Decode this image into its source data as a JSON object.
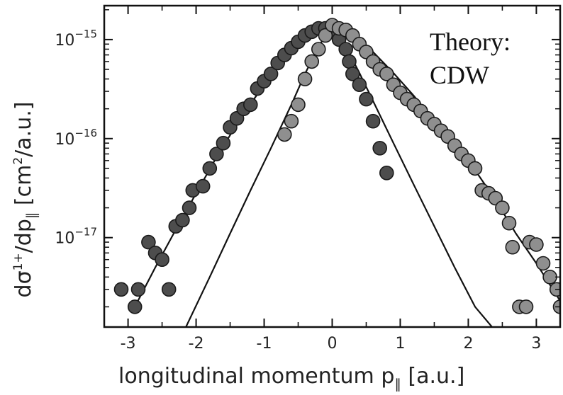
{
  "chart_data": {
    "type": "scatter",
    "title": "",
    "xlabel": "longitudinal momentum p∥ [a.u.]",
    "ylabel": "dσ1+/dp∥ [cm2/a.u.]",
    "ylabel_parts": {
      "a": "dσ",
      "sup1": "1+",
      "b": "/dp",
      "sub": "∥",
      "c": " [cm",
      "sup2": "2",
      "d": "/a.u.]"
    },
    "xlabel_parts": {
      "a": "longitudinal momentum p",
      "sub": "∥",
      "b": " [a.u.]"
    },
    "annotation": [
      "Theory:",
      "CDW"
    ],
    "xlim": [
      -3.35,
      3.35
    ],
    "ylim": [
      1.25e-18,
      2.2e-15
    ],
    "yscale": "log",
    "grid": false,
    "x_ticks": [
      {
        "value": -3,
        "label": "-3"
      },
      {
        "value": -2,
        "label": "-2"
      },
      {
        "value": -1,
        "label": "-1"
      },
      {
        "value": 0,
        "label": "0"
      },
      {
        "value": 1,
        "label": "1"
      },
      {
        "value": 2,
        "label": "2"
      },
      {
        "value": 3,
        "label": "3"
      }
    ],
    "y_ticks": [
      {
        "value": 1e-15,
        "label_base": "10",
        "label_exp": "−15"
      },
      {
        "value": 1e-16,
        "label_base": "10",
        "label_exp": "−16"
      },
      {
        "value": 1e-17,
        "label_base": "10",
        "label_exp": "−17"
      }
    ],
    "series": [
      {
        "type": "scatter",
        "color": "#4d4d4d",
        "points": [
          [
            -3.1,
            3e-18
          ],
          [
            -2.9,
            2e-18
          ],
          [
            -2.85,
            3e-18
          ],
          [
            -2.7,
            9e-18
          ],
          [
            -2.6,
            7e-18
          ],
          [
            -2.5,
            6e-18
          ],
          [
            -2.4,
            3e-18
          ],
          [
            -2.3,
            1.3e-17
          ],
          [
            -2.2,
            1.5e-17
          ],
          [
            -2.1,
            2e-17
          ],
          [
            -2.05,
            3e-17
          ],
          [
            -1.9,
            3.3e-17
          ],
          [
            -1.8,
            5e-17
          ],
          [
            -1.7,
            7e-17
          ],
          [
            -1.6,
            9e-17
          ],
          [
            -1.5,
            1.3e-16
          ],
          [
            -1.4,
            1.6e-16
          ],
          [
            -1.3,
            2e-16
          ],
          [
            -1.2,
            2.2e-16
          ],
          [
            -1.1,
            3.2e-16
          ],
          [
            -1.0,
            3.8e-16
          ],
          [
            -0.9,
            4.5e-16
          ],
          [
            -0.8,
            5.8e-16
          ],
          [
            -0.7,
            7e-16
          ],
          [
            -0.6,
            8.2e-16
          ],
          [
            -0.5,
            9.5e-16
          ],
          [
            -0.4,
            1.1e-15
          ],
          [
            -0.3,
            1.2e-15
          ],
          [
            -0.2,
            1.3e-15
          ],
          [
            -0.1,
            1.3e-15
          ],
          [
            0.0,
            1.2e-15
          ],
          [
            0.1,
            1e-15
          ],
          [
            0.2,
            8e-16
          ],
          [
            0.25,
            6e-16
          ],
          [
            0.3,
            4.5e-16
          ],
          [
            0.4,
            3.5e-16
          ],
          [
            0.5,
            2.5e-16
          ],
          [
            0.6,
            1.5e-16
          ],
          [
            0.7,
            8e-17
          ],
          [
            0.8,
            4.5e-17
          ]
        ]
      },
      {
        "type": "scatter",
        "color": "#8f8f8f",
        "points": [
          [
            -0.7,
            1.1e-16
          ],
          [
            -0.6,
            1.5e-16
          ],
          [
            -0.5,
            2.2e-16
          ],
          [
            -0.4,
            4e-16
          ],
          [
            -0.3,
            6e-16
          ],
          [
            -0.2,
            8e-16
          ],
          [
            -0.1,
            1.1e-15
          ],
          [
            0.0,
            1.4e-15
          ],
          [
            0.1,
            1.3e-15
          ],
          [
            0.2,
            1.25e-15
          ],
          [
            0.3,
            1.1e-15
          ],
          [
            0.4,
            9e-16
          ],
          [
            0.5,
            7.5e-16
          ],
          [
            0.6,
            6e-16
          ],
          [
            0.7,
            5e-16
          ],
          [
            0.8,
            4.5e-16
          ],
          [
            0.9,
            3.5e-16
          ],
          [
            1.0,
            2.9e-16
          ],
          [
            1.1,
            2.5e-16
          ],
          [
            1.2,
            2.2e-16
          ],
          [
            1.3,
            1.9e-16
          ],
          [
            1.4,
            1.6e-16
          ],
          [
            1.5,
            1.4e-16
          ],
          [
            1.6,
            1.2e-16
          ],
          [
            1.7,
            1.05e-16
          ],
          [
            1.8,
            8.5e-17
          ],
          [
            1.9,
            7e-17
          ],
          [
            2.0,
            6e-17
          ],
          [
            2.1,
            5e-17
          ],
          [
            2.2,
            3e-17
          ],
          [
            2.3,
            2.8e-17
          ],
          [
            2.4,
            2.5e-17
          ],
          [
            2.5,
            2e-17
          ],
          [
            2.6,
            1.4e-17
          ],
          [
            2.65,
            8e-18
          ],
          [
            2.75,
            2e-18
          ],
          [
            2.85,
            2e-18
          ],
          [
            2.9,
            9e-18
          ],
          [
            3.0,
            8.5e-18
          ],
          [
            3.1,
            5.5e-18
          ],
          [
            3.2,
            4e-18
          ],
          [
            3.3,
            3e-18
          ],
          [
            3.35,
            2e-18
          ]
        ]
      }
    ],
    "curves": [
      {
        "color": "#111111",
        "points": [
          [
            -2.9,
            2e-18
          ],
          [
            -2.6,
            5e-18
          ],
          [
            -2.3,
            1.2e-17
          ],
          [
            -2.0,
            2.8e-17
          ],
          [
            -1.7,
            6.5e-17
          ],
          [
            -1.4,
            1.4e-16
          ],
          [
            -1.1,
            2.8e-16
          ],
          [
            -0.8,
            5.3e-16
          ],
          [
            -0.5,
            8.8e-16
          ],
          [
            -0.3,
            1.15e-15
          ],
          [
            -0.15,
            1.3e-15
          ],
          [
            0.0,
            1.36e-15
          ],
          [
            0.15,
            1.3e-15
          ],
          [
            0.35,
            1.1e-15
          ],
          [
            0.6,
            7.5e-16
          ],
          [
            0.9,
            4.6e-16
          ],
          [
            1.2,
            2.7e-16
          ],
          [
            1.5,
            1.5e-16
          ],
          [
            1.8,
            8.5e-17
          ],
          [
            2.1,
            4.8e-17
          ],
          [
            2.4,
            2.4e-17
          ],
          [
            2.7,
            1.1e-17
          ],
          [
            3.0,
            5.5e-18
          ],
          [
            3.3,
            2.6e-18
          ],
          [
            3.35,
            2.3e-18
          ]
        ]
      },
      {
        "color": "#111111",
        "points": [
          [
            -2.15,
            1.25e-18
          ],
          [
            -1.8,
            4e-18
          ],
          [
            -1.5,
            1.1e-17
          ],
          [
            -1.2,
            3e-17
          ],
          [
            -0.9,
            8e-17
          ],
          [
            -0.6,
            2.2e-16
          ],
          [
            -0.4,
            4.5e-16
          ],
          [
            -0.2,
            8.5e-16
          ],
          [
            -0.1,
            1.1e-15
          ],
          [
            0.0,
            1.25e-15
          ],
          [
            0.1,
            1.1e-15
          ],
          [
            0.2,
            8.5e-16
          ],
          [
            0.4,
            4.6e-16
          ],
          [
            0.6,
            2.4e-16
          ],
          [
            0.9,
            9e-17
          ],
          [
            1.2,
            3.4e-17
          ],
          [
            1.5,
            1.3e-17
          ],
          [
            1.8,
            5e-18
          ],
          [
            2.1,
            2e-18
          ],
          [
            2.35,
            1.25e-18
          ]
        ]
      }
    ]
  }
}
